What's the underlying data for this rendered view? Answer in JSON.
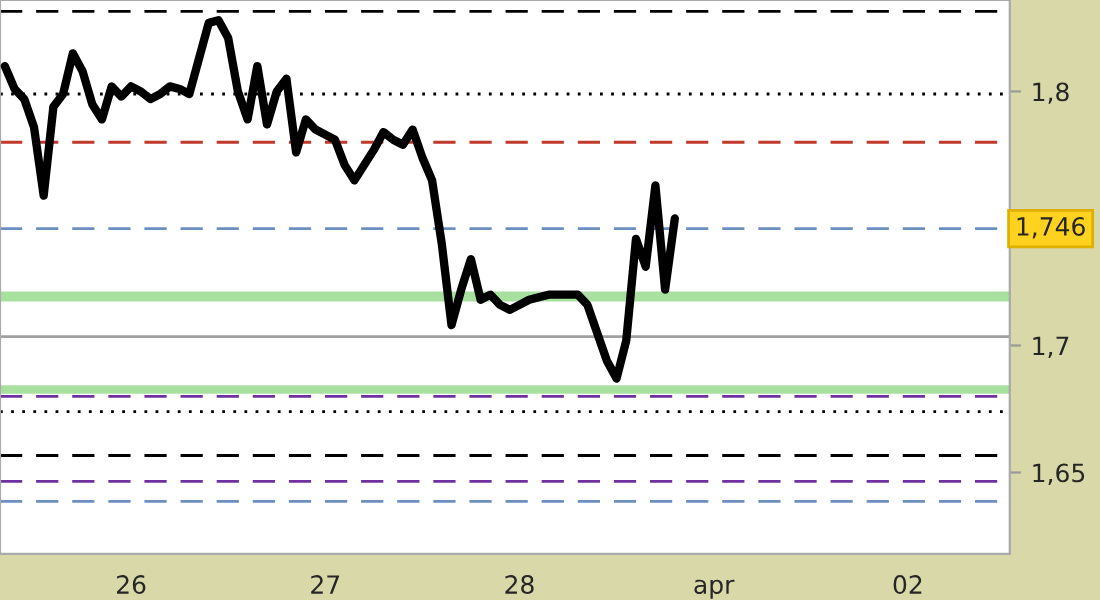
{
  "chart_data": {
    "type": "line",
    "categories": [
      null,
      null,
      null,
      null,
      null,
      null,
      null,
      null,
      null,
      null,
      null,
      null,
      null,
      "26",
      null,
      null,
      null,
      null,
      null,
      null,
      null,
      null,
      null,
      null,
      null,
      null,
      null,
      null,
      null,
      null,
      null,
      null,
      null,
      "27",
      null,
      null,
      null,
      null,
      null,
      null,
      null,
      null,
      null,
      null,
      null,
      null,
      null,
      null,
      null,
      null,
      null,
      null,
      null,
      "28",
      null,
      null,
      null,
      null,
      null,
      null,
      null,
      null,
      null,
      null,
      null,
      null,
      null,
      null,
      null,
      null,
      null,
      null,
      null,
      "apr",
      null,
      null,
      null,
      null,
      null,
      null,
      null,
      null,
      null,
      null,
      null,
      null,
      null,
      null,
      null,
      null,
      null,
      null,
      null,
      "02",
      null,
      null,
      null,
      null,
      null,
      null,
      null,
      null,
      null,
      null
    ],
    "series": [
      {
        "color": "#000000",
        "values": [
          1.81,
          1.801,
          1.797,
          1.786,
          1.759,
          1.794,
          1.799,
          1.815,
          1.808,
          1.795,
          1.789,
          1.802,
          1.798,
          1.802,
          1.8,
          1.797,
          1.799,
          1.802,
          1.801,
          1.799,
          1.813,
          1.827,
          1.828,
          1.821,
          1.8,
          1.789,
          1.81,
          1.787,
          1.8,
          1.805,
          1.776,
          1.789,
          1.785,
          1.783,
          1.781,
          1.771,
          1.765,
          1.771,
          1.777,
          1.784,
          1.781,
          1.779,
          1.785,
          1.774,
          1.765,
          1.74,
          1.708,
          1.722,
          1.734,
          1.718,
          1.72,
          1.716,
          1.714,
          1.716,
          1.718,
          1.719,
          1.72,
          1.72,
          1.72,
          1.72,
          1.716,
          1.705,
          1.694,
          1.687,
          1.702,
          1.742,
          1.731,
          1.763,
          1.722,
          1.75,
          null,
          null,
          null,
          null,
          null,
          null,
          null,
          null,
          null,
          null,
          null,
          null,
          null,
          null,
          null,
          null,
          null,
          null,
          null,
          null,
          null,
          null,
          null,
          null,
          null,
          null,
          null,
          null,
          null,
          null,
          null,
          null,
          null,
          null
        ]
      }
    ],
    "ylim": [
      1.618,
      1.836
    ],
    "yticks": [
      {
        "value": 1.65,
        "label": "1,65"
      },
      {
        "value": 1.7,
        "label": "1,7"
      },
      {
        "value": 1.8,
        "label": "1,8"
      }
    ],
    "ref_lines": [
      {
        "axis": "y",
        "value": 1.8315,
        "color": "#000000",
        "line_style": "dashed"
      },
      {
        "axis": "y",
        "value": 1.799,
        "color": "#000000",
        "line_style": "dotted"
      },
      {
        "axis": "y",
        "value": 1.78,
        "color": "#c0392b",
        "line_style": "dashed"
      },
      {
        "axis": "y",
        "value": 1.746,
        "color": "#6a8fc0",
        "line_style": "dashed",
        "label": "1,746"
      },
      {
        "axis": "y",
        "value": 1.7035,
        "color": "#a0a0a0",
        "line_style": "solid"
      },
      {
        "axis": "y",
        "value": 1.68,
        "color": "#7030a0",
        "line_style": "dashed"
      },
      {
        "axis": "y",
        "value": 1.674,
        "color": "#000000",
        "line_style": "dotted"
      },
      {
        "axis": "y",
        "value": 1.6567,
        "color": "#000000",
        "line_style": "dashed"
      },
      {
        "axis": "y",
        "value": 1.6465,
        "color": "#7030a0",
        "line_style": "dashed"
      },
      {
        "axis": "y",
        "value": 1.6386,
        "color": "#6a8fc0",
        "line_style": "dashed"
      }
    ],
    "bands": [
      {
        "axis": "y",
        "from": 1.7173,
        "to": 1.7213,
        "color": "#a8e0a0"
      },
      {
        "axis": "y",
        "from": 1.681,
        "to": 1.6843,
        "color": "#a8e0a0"
      }
    ],
    "grid": false,
    "legend": false
  }
}
